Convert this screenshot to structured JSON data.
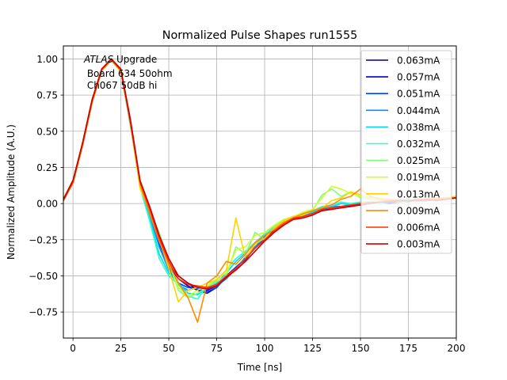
{
  "chart_data": {
    "type": "line",
    "title": "Normalized Pulse Shapes run1555",
    "xlabel": "Time [ns]",
    "ylabel": "Normalized Amplitude (A.U.)",
    "xlim": [
      -5,
      200
    ],
    "ylim": [
      -0.93,
      1.09
    ],
    "xticks": [
      0,
      25,
      50,
      75,
      100,
      125,
      150,
      175,
      200
    ],
    "xtick_labels": [
      "0",
      "25",
      "50",
      "75",
      "100",
      "125",
      "150",
      "175",
      "200"
    ],
    "yticks": [
      -0.75,
      -0.5,
      -0.25,
      0.0,
      0.25,
      0.5,
      0.75,
      1.0
    ],
    "ytick_labels": [
      "−0.75",
      "−0.50",
      "−0.25",
      "0.00",
      "0.25",
      "0.50",
      "0.75",
      "1.00"
    ],
    "grid": true,
    "legend_position": "upper right",
    "annotation": {
      "line1_italic": "ATLAS",
      "line1_rest": " Upgrade",
      "line2": " Board 634 50ohm",
      "line3": " Ch067 50dB hi"
    },
    "series": [
      {
        "name": "0.063mA",
        "color": "#00008f",
        "x": [
          -5,
          0,
          5,
          10,
          15,
          20,
          25,
          30,
          35,
          40,
          45,
          50,
          55,
          60,
          65,
          70,
          75,
          80,
          85,
          90,
          95,
          100,
          105,
          110,
          115,
          120,
          125,
          130,
          135,
          140,
          145,
          150,
          155,
          160,
          165,
          170,
          175,
          180,
          185,
          190,
          195,
          200
        ],
        "y": [
          0.02,
          0.15,
          0.4,
          0.7,
          0.92,
          1.0,
          0.92,
          0.55,
          0.14,
          -0.06,
          -0.28,
          -0.42,
          -0.5,
          -0.55,
          -0.6,
          -0.62,
          -0.58,
          -0.5,
          -0.44,
          -0.38,
          -0.3,
          -0.24,
          -0.18,
          -0.13,
          -0.1,
          -0.08,
          -0.06,
          -0.04,
          -0.03,
          -0.02,
          -0.01,
          0.0,
          0.0,
          0.01,
          0.0,
          0.01,
          0.02,
          0.02,
          0.02,
          0.03,
          0.03,
          0.04
        ]
      },
      {
        "name": "0.057mA",
        "color": "#0000cd",
        "x": [
          -5,
          0,
          5,
          10,
          15,
          20,
          25,
          30,
          35,
          40,
          45,
          50,
          55,
          60,
          65,
          70,
          75,
          80,
          85,
          90,
          95,
          100,
          105,
          110,
          115,
          120,
          125,
          130,
          135,
          140,
          145,
          150,
          155,
          160,
          165,
          170,
          175,
          180,
          185,
          190,
          195,
          200
        ],
        "y": [
          0.03,
          0.15,
          0.41,
          0.71,
          0.93,
          0.99,
          0.91,
          0.55,
          0.15,
          -0.05,
          -0.27,
          -0.43,
          -0.52,
          -0.57,
          -0.6,
          -0.6,
          -0.57,
          -0.52,
          -0.45,
          -0.38,
          -0.31,
          -0.25,
          -0.19,
          -0.13,
          -0.09,
          -0.08,
          -0.07,
          -0.04,
          -0.03,
          -0.02,
          -0.02,
          0.0,
          0.01,
          0.01,
          0.0,
          0.01,
          0.02,
          0.02,
          0.03,
          0.03,
          0.03,
          0.04
        ]
      },
      {
        "name": "0.051mA",
        "color": "#0040ff",
        "x": [
          -5,
          0,
          5,
          10,
          15,
          20,
          25,
          30,
          35,
          40,
          45,
          50,
          55,
          60,
          65,
          70,
          75,
          80,
          85,
          90,
          95,
          100,
          105,
          110,
          115,
          120,
          125,
          130,
          135,
          140,
          145,
          150,
          155,
          160,
          165,
          170,
          175,
          180,
          185,
          190,
          195,
          200
        ],
        "y": [
          0.02,
          0.14,
          0.4,
          0.7,
          0.92,
          1.0,
          0.92,
          0.56,
          0.14,
          -0.07,
          -0.28,
          -0.44,
          -0.55,
          -0.58,
          -0.59,
          -0.61,
          -0.58,
          -0.51,
          -0.44,
          -0.39,
          -0.3,
          -0.24,
          -0.18,
          -0.12,
          -0.1,
          -0.09,
          -0.06,
          -0.05,
          -0.03,
          -0.02,
          -0.01,
          -0.01,
          0.0,
          0.01,
          0.01,
          0.01,
          0.02,
          0.02,
          0.02,
          0.03,
          0.03,
          0.04
        ]
      },
      {
        "name": "0.044mA",
        "color": "#0090ff",
        "x": [
          -5,
          0,
          5,
          10,
          15,
          20,
          25,
          30,
          35,
          40,
          45,
          50,
          55,
          60,
          65,
          70,
          75,
          80,
          85,
          90,
          95,
          100,
          105,
          110,
          115,
          120,
          125,
          130,
          135,
          140,
          145,
          150,
          155,
          160,
          165,
          170,
          175,
          180,
          185,
          190,
          195,
          200
        ],
        "y": [
          0.03,
          0.16,
          0.41,
          0.71,
          0.92,
          0.99,
          0.91,
          0.54,
          0.13,
          -0.08,
          -0.3,
          -0.46,
          -0.56,
          -0.6,
          -0.58,
          -0.59,
          -0.57,
          -0.52,
          -0.45,
          -0.37,
          -0.3,
          -0.23,
          -0.17,
          -0.12,
          -0.1,
          -0.08,
          -0.07,
          -0.04,
          -0.02,
          -0.02,
          -0.01,
          0.0,
          0.01,
          0.0,
          0.01,
          0.02,
          0.01,
          0.03,
          0.02,
          0.03,
          0.04,
          0.04
        ]
      },
      {
        "name": "0.038mA",
        "color": "#00d4ff",
        "x": [
          -5,
          0,
          5,
          10,
          15,
          20,
          25,
          30,
          35,
          40,
          45,
          50,
          55,
          60,
          65,
          70,
          75,
          80,
          85,
          90,
          95,
          100,
          105,
          110,
          115,
          120,
          125,
          130,
          135,
          140,
          145,
          150,
          155,
          160,
          165,
          170,
          175,
          180,
          185,
          190,
          195,
          200
        ],
        "y": [
          0.02,
          0.15,
          0.4,
          0.7,
          0.93,
          1.0,
          0.92,
          0.55,
          0.12,
          -0.1,
          -0.35,
          -0.48,
          -0.55,
          -0.62,
          -0.63,
          -0.58,
          -0.55,
          -0.48,
          -0.4,
          -0.34,
          -0.28,
          -0.22,
          -0.16,
          -0.12,
          -0.1,
          -0.08,
          -0.06,
          -0.03,
          -0.02,
          0.0,
          -0.01,
          0.01,
          0.0,
          0.01,
          0.02,
          0.01,
          0.02,
          0.03,
          0.02,
          0.04,
          0.03,
          0.04
        ]
      },
      {
        "name": "0.032mA",
        "color": "#29ffce",
        "x": [
          -5,
          0,
          5,
          10,
          15,
          20,
          25,
          30,
          35,
          40,
          45,
          50,
          55,
          60,
          65,
          70,
          75,
          80,
          85,
          90,
          95,
          100,
          105,
          110,
          115,
          120,
          125,
          130,
          135,
          140,
          145,
          150,
          155,
          160,
          165,
          170,
          175,
          180,
          185,
          190,
          195,
          200
        ],
        "y": [
          0.03,
          0.15,
          0.41,
          0.71,
          0.92,
          0.99,
          0.91,
          0.54,
          0.11,
          -0.12,
          -0.38,
          -0.5,
          -0.56,
          -0.64,
          -0.66,
          -0.57,
          -0.53,
          -0.46,
          -0.38,
          -0.33,
          -0.27,
          -0.21,
          -0.17,
          -0.11,
          -0.1,
          -0.08,
          -0.05,
          -0.02,
          -0.01,
          0.01,
          0.0,
          0.01,
          0.01,
          0.0,
          0.02,
          0.02,
          0.02,
          0.03,
          0.03,
          0.03,
          0.04,
          0.04
        ]
      },
      {
        "name": "0.025mA",
        "color": "#7dff7a",
        "x": [
          -5,
          0,
          5,
          10,
          15,
          20,
          25,
          30,
          35,
          40,
          45,
          50,
          55,
          60,
          65,
          70,
          75,
          80,
          85,
          90,
          95,
          100,
          105,
          110,
          115,
          120,
          125,
          130,
          135,
          140,
          145,
          150,
          155,
          160,
          165,
          170,
          175,
          180,
          185,
          190,
          195,
          200
        ],
        "y": [
          0.02,
          0.14,
          0.4,
          0.7,
          0.93,
          1.0,
          0.92,
          0.56,
          0.12,
          -0.05,
          -0.2,
          -0.4,
          -0.6,
          -0.65,
          -0.62,
          -0.58,
          -0.54,
          -0.5,
          -0.3,
          -0.35,
          -0.2,
          -0.25,
          -0.16,
          -0.12,
          -0.1,
          -0.07,
          -0.05,
          0.06,
          0.1,
          0.05,
          0.08,
          0.04,
          0.03,
          0.02,
          0.03,
          0.02,
          0.03,
          0.02,
          0.03,
          0.03,
          0.04,
          0.05
        ]
      },
      {
        "name": "0.019mA",
        "color": "#ceff29",
        "x": [
          -5,
          0,
          5,
          10,
          15,
          20,
          25,
          30,
          35,
          40,
          45,
          50,
          55,
          60,
          65,
          70,
          75,
          80,
          85,
          90,
          95,
          100,
          105,
          110,
          115,
          120,
          125,
          130,
          135,
          140,
          145,
          150,
          155,
          160,
          165,
          170,
          175,
          180,
          185,
          190,
          195,
          200
        ],
        "y": [
          0.03,
          0.16,
          0.41,
          0.71,
          0.92,
          0.99,
          0.91,
          0.55,
          0.1,
          -0.05,
          -0.22,
          -0.42,
          -0.58,
          -0.64,
          -0.6,
          -0.57,
          -0.52,
          -0.48,
          -0.32,
          -0.3,
          -0.22,
          -0.2,
          -0.15,
          -0.11,
          -0.09,
          -0.06,
          -0.04,
          0.04,
          0.12,
          0.1,
          0.07,
          0.05,
          0.04,
          0.03,
          0.03,
          0.02,
          0.02,
          0.03,
          0.03,
          0.04,
          0.04,
          0.05
        ]
      },
      {
        "name": "0.013mA",
        "color": "#ffd200",
        "x": [
          -5,
          0,
          5,
          10,
          15,
          20,
          25,
          30,
          35,
          40,
          45,
          50,
          55,
          60,
          65,
          70,
          75,
          80,
          85,
          90,
          95,
          100,
          105,
          110,
          115,
          120,
          125,
          130,
          135,
          140,
          145,
          150,
          155,
          160,
          165,
          170,
          175,
          180,
          185,
          190,
          195,
          200
        ],
        "y": [
          0.02,
          0.15,
          0.42,
          0.72,
          0.93,
          1.0,
          0.93,
          0.56,
          0.12,
          -0.06,
          -0.25,
          -0.45,
          -0.68,
          -0.6,
          -0.58,
          -0.55,
          -0.53,
          -0.46,
          -0.1,
          -0.38,
          -0.28,
          -0.24,
          -0.17,
          -0.12,
          -0.09,
          -0.08,
          -0.05,
          -0.03,
          0.02,
          0.04,
          0.08,
          0.06,
          0.04,
          0.04,
          0.03,
          0.02,
          0.02,
          0.03,
          0.03,
          0.04,
          0.04,
          0.05
        ]
      },
      {
        "name": "0.009mA",
        "color": "#ff8c00",
        "x": [
          -5,
          0,
          5,
          10,
          15,
          20,
          25,
          30,
          35,
          40,
          45,
          50,
          55,
          60,
          65,
          70,
          75,
          80,
          85,
          90,
          95,
          100,
          105,
          110,
          115,
          120,
          125,
          130,
          135,
          140,
          145,
          150,
          155,
          160,
          165,
          170,
          175,
          180,
          185,
          190,
          195,
          200
        ],
        "y": [
          0.03,
          0.14,
          0.4,
          0.7,
          0.92,
          0.99,
          0.92,
          0.55,
          0.13,
          -0.07,
          -0.26,
          -0.42,
          -0.55,
          -0.65,
          -0.82,
          -0.55,
          -0.5,
          -0.4,
          -0.42,
          -0.35,
          -0.27,
          -0.22,
          -0.18,
          -0.13,
          -0.1,
          -0.07,
          -0.05,
          -0.03,
          -0.01,
          0.03,
          0.05,
          0.1,
          0.05,
          0.03,
          0.02,
          0.03,
          0.02,
          0.02,
          0.03,
          0.03,
          0.04,
          0.04
        ]
      },
      {
        "name": "0.006mA",
        "color": "#ff3000",
        "x": [
          -5,
          0,
          5,
          10,
          15,
          20,
          25,
          30,
          35,
          40,
          45,
          50,
          55,
          60,
          65,
          70,
          75,
          80,
          85,
          90,
          95,
          100,
          105,
          110,
          115,
          120,
          125,
          130,
          135,
          140,
          145,
          150,
          155,
          160,
          165,
          170,
          175,
          180,
          185,
          190,
          195,
          200
        ],
        "y": [
          0.02,
          0.15,
          0.41,
          0.71,
          0.93,
          1.0,
          0.92,
          0.56,
          0.15,
          -0.04,
          -0.24,
          -0.4,
          -0.52,
          -0.56,
          -0.57,
          -0.58,
          -0.56,
          -0.5,
          -0.45,
          -0.38,
          -0.31,
          -0.25,
          -0.19,
          -0.14,
          -0.1,
          -0.09,
          -0.07,
          -0.04,
          -0.03,
          -0.02,
          -0.01,
          0.0,
          0.01,
          0.01,
          0.02,
          0.02,
          0.02,
          0.03,
          0.02,
          0.03,
          0.03,
          0.04
        ]
      },
      {
        "name": "0.003mA",
        "color": "#cd0000",
        "x": [
          -5,
          0,
          5,
          10,
          15,
          20,
          25,
          30,
          35,
          40,
          45,
          50,
          55,
          60,
          65,
          70,
          75,
          80,
          85,
          90,
          95,
          100,
          105,
          110,
          115,
          120,
          125,
          130,
          135,
          140,
          145,
          150,
          155,
          160,
          165,
          170,
          175,
          180,
          185,
          190,
          195,
          200
        ],
        "y": [
          0.03,
          0.16,
          0.42,
          0.72,
          0.93,
          1.0,
          0.93,
          0.58,
          0.16,
          -0.02,
          -0.22,
          -0.38,
          -0.5,
          -0.55,
          -0.58,
          -0.59,
          -0.57,
          -0.51,
          -0.46,
          -0.4,
          -0.33,
          -0.26,
          -0.2,
          -0.15,
          -0.11,
          -0.1,
          -0.08,
          -0.05,
          -0.04,
          -0.03,
          -0.02,
          -0.01,
          0.0,
          0.01,
          0.01,
          0.02,
          0.02,
          0.02,
          0.03,
          0.02,
          0.03,
          0.04
        ]
      }
    ]
  }
}
